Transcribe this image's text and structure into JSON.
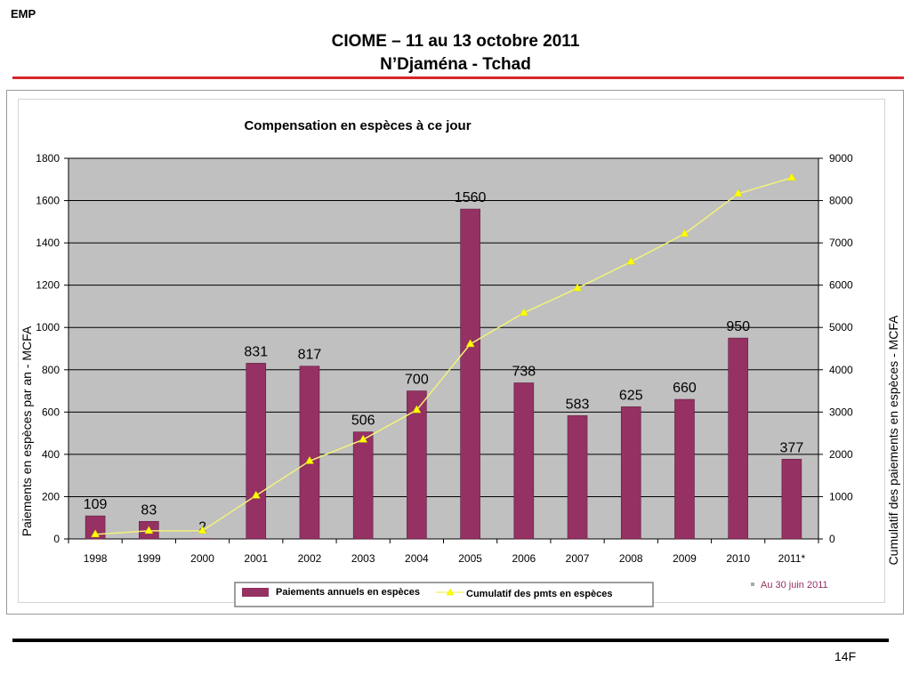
{
  "header": {
    "tag": "EMP",
    "title_line1": "CIOME – 11 au 13 octobre 2011",
    "title_line2": "N’Djaména  - Tchad"
  },
  "footer": {
    "page_number": "14F"
  },
  "colors": {
    "bar": "#953163",
    "line": "#f2f27a",
    "marker": "#ffff00",
    "plot_bg": "#c0c0c0",
    "accent_red": "#d9262b"
  },
  "chart_data": {
    "type": "bar",
    "title": "Compensation en espèces à ce jour",
    "categories": [
      "1998",
      "1999",
      "2000",
      "2001",
      "2002",
      "2003",
      "2004",
      "2005",
      "2006",
      "2007",
      "2008",
      "2009",
      "2010",
      "2011*"
    ],
    "series": [
      {
        "name": "Paiements  annuels  en espèces",
        "type": "bar",
        "axis": "left",
        "values": [
          109,
          83,
          2,
          831,
          817,
          506,
          700,
          1560,
          738,
          583,
          625,
          660,
          950,
          377
        ],
        "labels": [
          "109",
          "83",
          "2",
          "831",
          "817",
          "506",
          "700",
          "1560",
          "738",
          "583",
          "625",
          "660",
          "950",
          "377"
        ]
      },
      {
        "name": "Cumulatif des pmts en espèces",
        "type": "line",
        "axis": "right",
        "values": [
          109,
          192,
          194,
          1025,
          1842,
          2348,
          3048,
          4608,
          5346,
          5929,
          6554,
          7214,
          8164,
          8541
        ]
      }
    ],
    "ylabel_left": "Paiements en espèces par an - MCFA",
    "ylabel_right": "Cumulatif des  paiements en espèces  - MCFA",
    "ylim_left": [
      0,
      1800
    ],
    "yticks_left": [
      0,
      200,
      400,
      600,
      800,
      1000,
      1200,
      1400,
      1600,
      1800
    ],
    "ylim_right": [
      0,
      9000
    ],
    "yticks_right": [
      0,
      1000,
      2000,
      3000,
      4000,
      5000,
      6000,
      7000,
      8000,
      9000
    ],
    "grid": true,
    "legend_position": "bottom",
    "footnote": "Au 30 juin 2011"
  }
}
